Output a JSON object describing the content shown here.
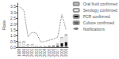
{
  "chart_data": {
    "type": "bar",
    "stacked": true,
    "categories": [
      "1998",
      "1999",
      "2000",
      "2001",
      "2002",
      "2003",
      "2004",
      "2005",
      "2006",
      "2007",
      "2008",
      "2009"
    ],
    "series": [
      {
        "name": "Culture confirmed",
        "type": "bar",
        "color": "#555555",
        "values": [
          0.02,
          0.02,
          0.02,
          0.01,
          0.01,
          0.01,
          0.01,
          0.01,
          0.01,
          0.02,
          0.05,
          0.1
        ]
      },
      {
        "name": "PCR confirmed",
        "type": "bar",
        "color": "#111111",
        "values": [
          0.0,
          0.0,
          0.0,
          0.0,
          0.0,
          0.0,
          0.02,
          0.05,
          0.07,
          0.12,
          0.3,
          0.35
        ]
      },
      {
        "name": "Serology confirmed",
        "type": "bar",
        "color": "#eeeeee",
        "values": [
          0.38,
          0.43,
          0.18,
          0.22,
          0.06,
          0.04,
          0.04,
          0.04,
          0.08,
          0.12,
          0.45,
          0.55
        ]
      },
      {
        "name": "Oral fluid confirmed",
        "type": "bar",
        "color": "#bbbbbb",
        "values": [
          0.08,
          0.08,
          0.04,
          0.03,
          0.01,
          0.01,
          0.01,
          0.02,
          0.02,
          0.04,
          0.08,
          0.12
        ]
      },
      {
        "name": "Notifications",
        "type": "line",
        "color": "#777777",
        "line_style": "dotted",
        "values": [
          3.5,
          3.2,
          0.9,
          1.3,
          1.2,
          0.45,
          0.5,
          0.6,
          0.7,
          0.85,
          2.8,
          1.5
        ]
      }
    ],
    "ylabel": "Rate",
    "ylim": [
      0,
      3.8
    ],
    "yticks": [
      {
        "value": 0,
        "label": "0.0"
      },
      0.5,
      {
        "value": 1,
        "label": "1.0"
      },
      1.5,
      {
        "value": 2,
        "label": "2.0"
      },
      2.5,
      {
        "value": 3,
        "label": "3.0"
      },
      3.5
    ],
    "grid": false,
    "legend": "upper right"
  }
}
